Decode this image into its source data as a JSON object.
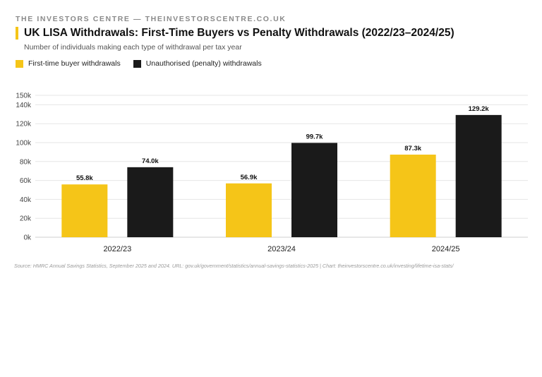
{
  "brand": "THE INVESTORS CENTRE — THEINVESTORSCENTRE.CO.UK",
  "colors": {
    "accent": "#F5C518",
    "first_time": "#F5C518",
    "penalty": "#1a1a1a"
  },
  "legend": [
    {
      "label": "First-time buyer withdrawals",
      "color": "#F5C518"
    },
    {
      "label": "Unauthorised (penalty) withdrawals",
      "color": "#1a1a1a"
    }
  ],
  "source": "Source: HMRC Annual Savings Statistics, September 2025 and 2024. URL: gov.uk/government/statistics/annual-savings-statistics-2025 | Chart: theinvestorscentre.co.uk/investing/lifetime-isa-stats/",
  "chart_data": {
    "type": "bar",
    "title": "UK LISA Withdrawals: First-Time Buyers vs Penalty Withdrawals (2022/23–2024/25)",
    "subtitle": "Number of individuals making each type of withdrawal per tax year",
    "categories": [
      "2022/23",
      "2023/24",
      "2024/25"
    ],
    "series": [
      {
        "name": "First-time buyer withdrawals",
        "values": [
          55800,
          56900,
          87300
        ],
        "labels": [
          "55.8k",
          "56.9k",
          "87.3k"
        ],
        "color": "#F5C518"
      },
      {
        "name": "Unauthorised (penalty) withdrawals",
        "values": [
          74000,
          99700,
          129200
        ],
        "labels": [
          "74.0k",
          "99.7k",
          "129.2k"
        ],
        "color": "#1a1a1a"
      }
    ],
    "ylim": [
      0,
      150000
    ],
    "yticks": [
      0,
      20000,
      40000,
      60000,
      80000,
      100000,
      120000,
      140000,
      150000
    ],
    "ytick_labels": [
      "0k",
      "20k",
      "40k",
      "60k",
      "80k",
      "100k",
      "120k",
      "140k",
      "150k"
    ],
    "grid": true,
    "legend_position": "top-left"
  }
}
